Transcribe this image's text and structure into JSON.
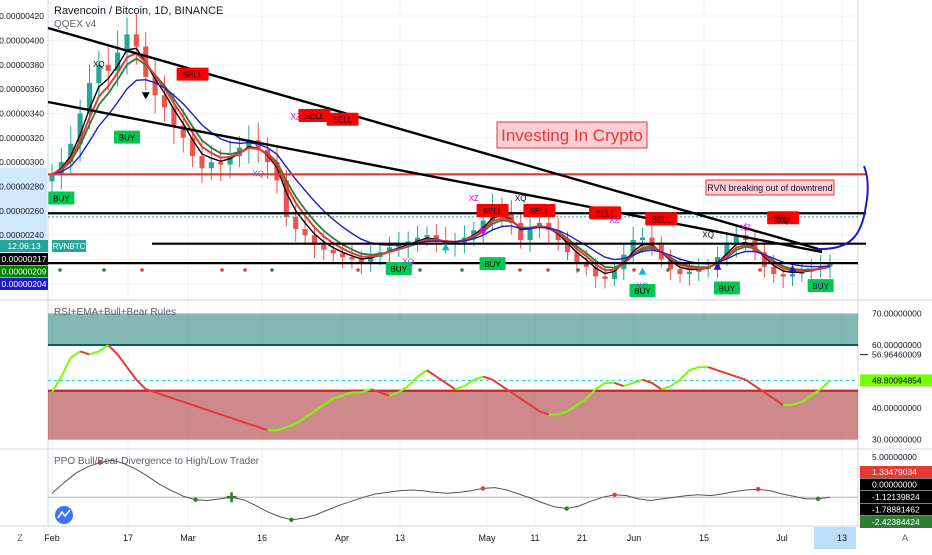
{
  "header": {
    "symbol_title": "Ravencoin / Bitcoin, 1D, BINANCE",
    "study_main": "QQEX v4",
    "study_rsi": "RSI+EMA+Bull+Bear Rules",
    "study_ppo": "PPO Bull/Bear Divergence to High/Low Trader"
  },
  "annotations": {
    "title_box": "Investing In Crypto",
    "note_box": "RVN breaking out of downtrend"
  },
  "price_axis": {
    "labels": [
      "0.00000420",
      "0.00000400",
      "0.00000380",
      "0.00000360",
      "0.00000340",
      "0.00000320",
      "0.00000300",
      "0.00000280",
      "0.00000260",
      "0.00000240",
      "0.00000220",
      "0.00000200"
    ],
    "countdown": "12:06:13",
    "ticker_tag": "RVNBTC",
    "tags": [
      {
        "text": "0.00000217",
        "color": "#000000"
      },
      {
        "text": "0.00000209",
        "color": "#008000"
      },
      {
        "text": "0.00000204",
        "color": "#1c1cc8"
      }
    ]
  },
  "rsi_axis": {
    "labels": [
      "70.00000000",
      "60.00000000",
      "40.00000000",
      "30.00000000"
    ],
    "value_56": "56.96460009",
    "value_current": "48.80094854"
  },
  "ppo_axis": {
    "labels": [
      "5.00000000",
      "0.00000000"
    ],
    "tags": [
      {
        "text": "1.33479034",
        "color": "#e53935"
      },
      {
        "text": "0.00000000",
        "color": "#000000"
      },
      {
        "text": "-1.12139824",
        "color": "#000000"
      },
      {
        "text": "-1.78881462",
        "color": "#000000"
      },
      {
        "text": "-2.42384424",
        "color": "#2e7d32"
      }
    ]
  },
  "time_axis": {
    "labels": [
      "Feb",
      "17",
      "Mar",
      "16",
      "Apr",
      "13",
      "May",
      "11",
      "21",
      "Jun",
      "15",
      "Jul",
      "13"
    ],
    "corner_left": "Z",
    "corner_right": "A"
  },
  "signals": {
    "buy_label": "BUY",
    "sell_label": "SELL",
    "xq_label": "XQ",
    "xz_label": "XZ"
  },
  "colors": {
    "up_candle": "#26a69a",
    "down_candle": "#ef5350",
    "rsi_band_upper": "#1b7f79",
    "rsi_band_lower": "#a52a2a",
    "buy_tag": "#00c853",
    "sell_tag": "#ff0000"
  },
  "chart_data": [
    {
      "type": "line",
      "title": "Ravencoin / Bitcoin, 1D, BINANCE",
      "series": [
        {
          "name": "QQEX v4",
          "values": [
            2.9e-06,
            3e-06,
            3.15e-06,
            3.4e-06,
            3.65e-06,
            3.8e-06,
            3.75e-06,
            3.9e-06,
            4.05e-06,
            3.95e-06,
            3.7e-06,
            3.55e-06,
            3.45e-06,
            3.3e-06,
            3.2e-06,
            3.05e-06,
            2.95e-06,
            3e-06,
            2.98e-06,
            3.05e-06,
            3.12e-06,
            3.18e-06,
            3.1e-06,
            3e-06,
            2.85e-06,
            2.55e-06,
            2.45e-06,
            2.4e-06,
            2.32e-06,
            2.28e-06,
            2.25e-06,
            2.22e-06,
            2.2e-06,
            2.18e-06,
            2.22e-06,
            2.26e-06,
            2.3e-06,
            2.32e-06,
            2.35e-06,
            2.38e-06,
            2.4e-06,
            2.36e-06,
            2.33e-06,
            2.34e-06,
            2.38e-06,
            2.44e-06,
            2.52e-06,
            2.62e-06,
            2.58e-06,
            2.5e-06,
            2.36e-06,
            2.46e-06,
            2.5e-06,
            2.44e-06,
            2.36e-06,
            2.26e-06,
            2.18e-06,
            2.14e-06,
            2.06e-06,
            2.04e-06,
            2.12e-06,
            2.24e-06,
            2.36e-06,
            2.38e-06,
            2.32e-06,
            2.2e-06,
            2.12e-06,
            2.08e-06,
            2.1e-06,
            2.12e-06,
            2.14e-06,
            2.22e-06,
            2.32e-06,
            2.4e-06,
            2.36e-06,
            2.26e-06,
            2.14e-06,
            2.08e-06,
            2.06e-06,
            2.08e-06,
            2.1e-06,
            2.12e-06,
            2.14e-06,
            2.17e-06
          ]
        }
      ],
      "y_axis_ticks": [
        "0.00000420",
        "0.00000400",
        "0.00000380",
        "0.00000360",
        "0.00000340",
        "0.00000320",
        "0.00000300",
        "0.00000280",
        "0.00000260",
        "0.00000240",
        "0.00000220",
        "0.00000200"
      ],
      "ylim": [
        1.9e-06,
        4.25e-06
      ],
      "x_tick_labels": [
        "Feb",
        "17",
        "Mar",
        "16",
        "Apr",
        "13",
        "May",
        "11",
        "21",
        "Jun",
        "15",
        "Jul",
        "13"
      ],
      "last_price": 2.17e-06,
      "horizontal_levels": [
        2.9e-06,
        2.58e-06,
        2.33e-06,
        2.17e-06
      ]
    },
    {
      "type": "line",
      "title": "RSI+EMA+Bull+Bear Rules",
      "y_axis_ticks": [
        "70.00000000",
        "60.00000000",
        "40.00000000",
        "30.00000000"
      ],
      "ylim": [
        28,
        73
      ],
      "bands": [
        [
          60,
          70
        ],
        [
          30,
          45.5
        ]
      ],
      "series": [
        {
          "name": "RSI+EMA+Bull+Bear Rules",
          "values": [
            45,
            50,
            56,
            58,
            57,
            58,
            60,
            57,
            53,
            49,
            46,
            45,
            44,
            43,
            42,
            41,
            40,
            39,
            38,
            37,
            36,
            35,
            34,
            33,
            33,
            34,
            35,
            37,
            39,
            41,
            43,
            44,
            45,
            45,
            46,
            45,
            44,
            45,
            47,
            50,
            52,
            50,
            48,
            46,
            47,
            49,
            50,
            49,
            47,
            45,
            43,
            41,
            39,
            38,
            38,
            39,
            41,
            43,
            46,
            48,
            48,
            47,
            48,
            49,
            48,
            46,
            47,
            49,
            52,
            53,
            53,
            52,
            51,
            50,
            49,
            47,
            45,
            43,
            41,
            41,
            42,
            44,
            46,
            48.8
          ]
        }
      ],
      "current_value": 48.80094854,
      "dashed_reference": 48.80094854
    },
    {
      "type": "line",
      "title": "PPO Bull/Bear Divergence to High/Low Trader",
      "y_axis_ticks": [
        "5.00000000",
        "0.00000000"
      ],
      "ylim": [
        -3.2,
        5.5
      ],
      "series": [
        {
          "name": "PPO Bull/Bear Divergence to High/Low Trader",
          "values": [
            0.5,
            1.8,
            3.0,
            3.8,
            4.3,
            4.6,
            4.2,
            3.5,
            2.6,
            1.6,
            0.8,
            0.1,
            -0.3,
            -0.4,
            -0.2,
            0.0,
            -0.3,
            -1.0,
            -1.8,
            -2.4,
            -2.8,
            -2.6,
            -2.2,
            -1.6,
            -1.0,
            -0.5,
            0.0,
            0.4,
            0.6,
            0.8,
            0.9,
            0.8,
            0.6,
            0.5,
            0.6,
            0.8,
            1.1,
            1.2,
            0.9,
            0.4,
            -0.1,
            -0.7,
            -1.2,
            -1.4,
            -1.1,
            -0.5,
            0.0,
            0.3,
            0.2,
            -0.2,
            -0.4,
            -0.2,
            0.0,
            0.2,
            0.3,
            0.2,
            0.4,
            0.7,
            0.9,
            1.0,
            0.8,
            0.4,
            0.1,
            -0.2,
            -0.2,
            0.0
          ]
        }
      ],
      "zero_line": 0
    }
  ]
}
